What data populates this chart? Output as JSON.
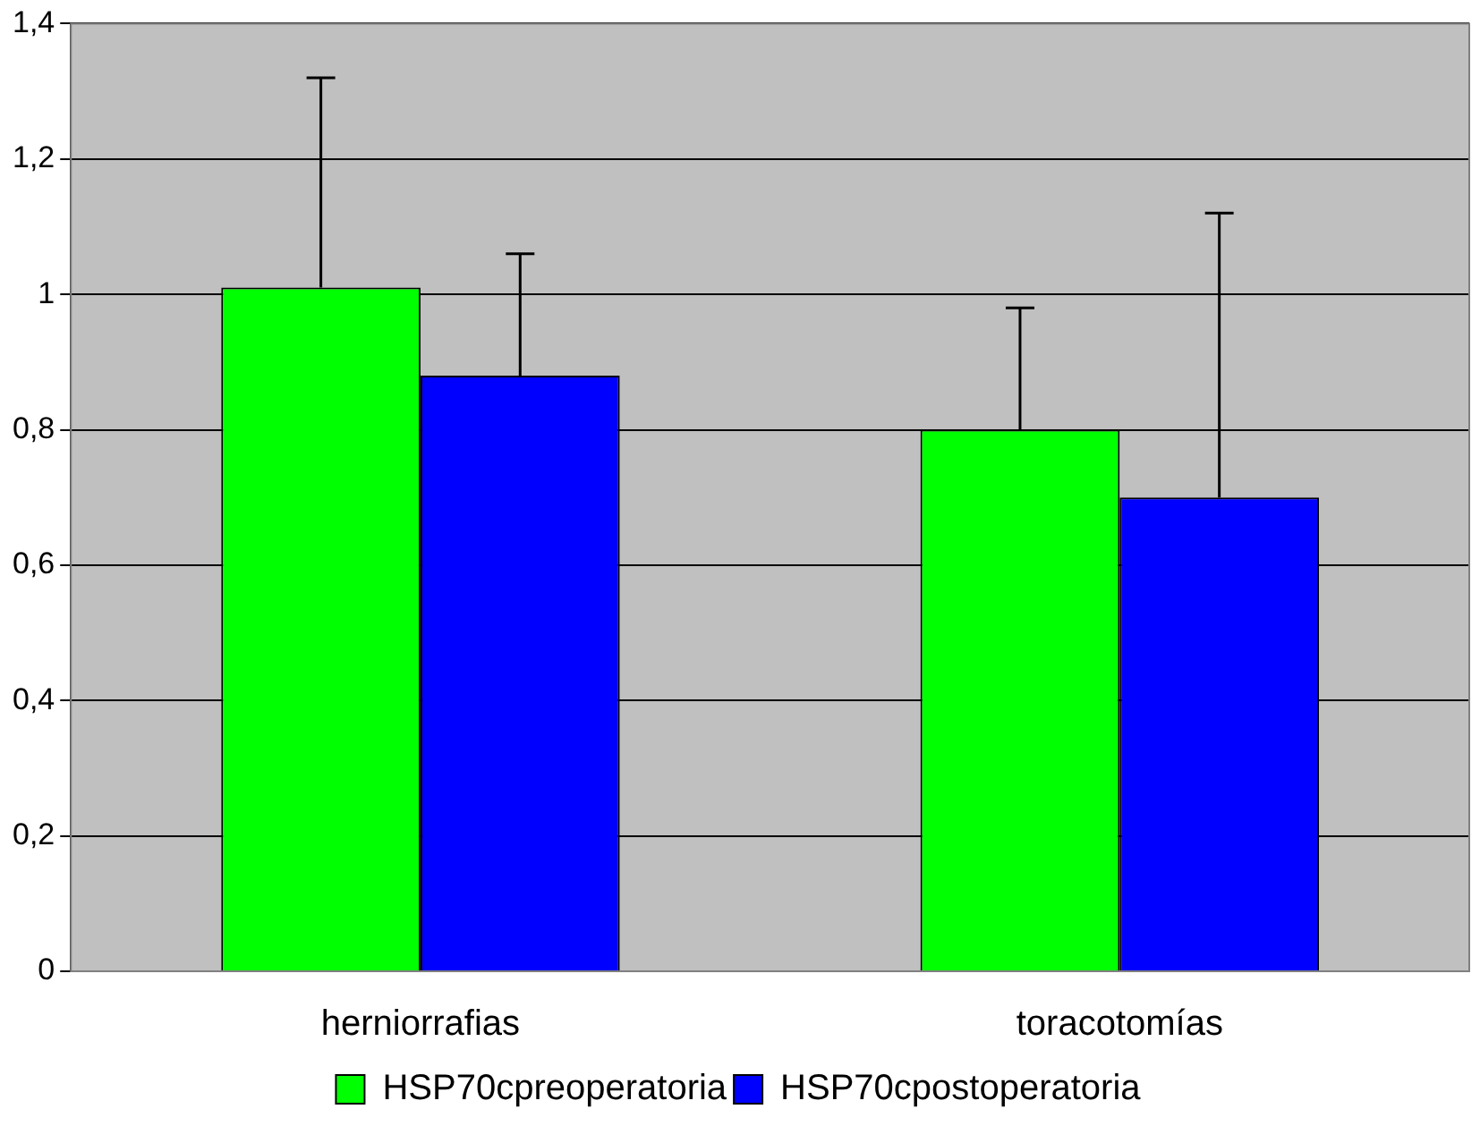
{
  "chart_data": {
    "type": "bar",
    "categories": [
      "herniorrafias",
      "toracotomías"
    ],
    "series": [
      {
        "name": "HSP70cpreoperatoria",
        "color": "#00ff00",
        "values": [
          1.01,
          0.8
        ],
        "errors": [
          [
            1.01,
            1.32
          ],
          [
            0.8,
            0.98
          ]
        ]
      },
      {
        "name": "HSP70cpostoperatoria",
        "color": "#0000ff",
        "values": [
          0.88,
          0.7
        ],
        "errors": [
          [
            0.88,
            1.06
          ],
          [
            0.7,
            1.12
          ]
        ]
      }
    ],
    "ylim": [
      0,
      1.4
    ],
    "yticks": [
      0,
      {
        "value": 0.2,
        "label": "0,2"
      },
      {
        "value": 0.4,
        "label": "0,4"
      },
      {
        "value": 0.6,
        "label": "0,6"
      },
      {
        "value": 0.8,
        "label": "0,8"
      },
      1,
      {
        "value": 1.2,
        "label": "1,2"
      },
      {
        "value": 1.4,
        "label": "1,4"
      }
    ],
    "grid": "y",
    "legend": "bottom"
  }
}
